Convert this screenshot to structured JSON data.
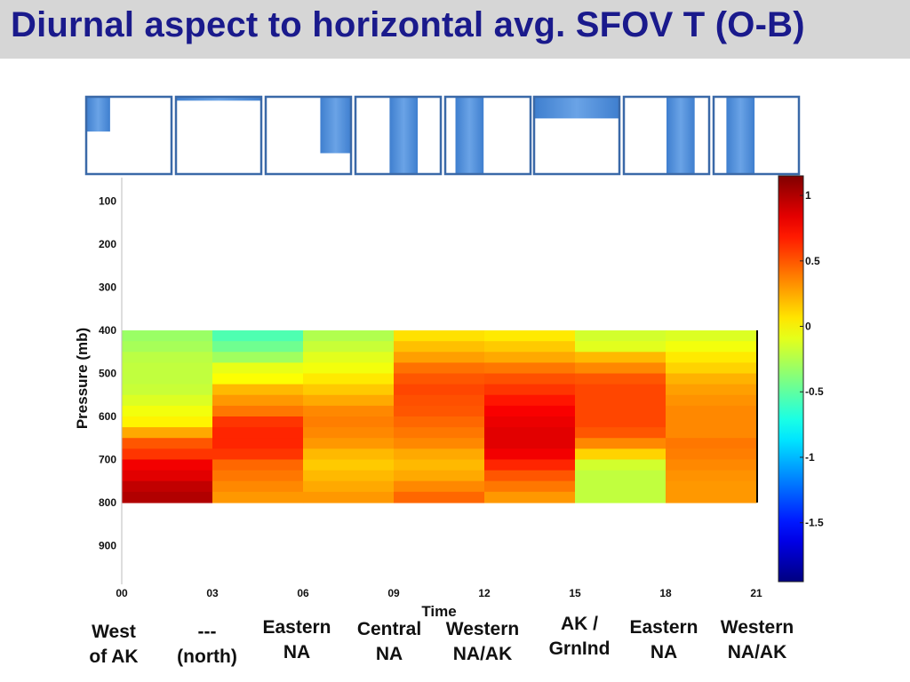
{
  "title": "Diurnal aspect to horizontal avg. SFOV T (O-B)",
  "region_labels": [
    "West\nof AK",
    "---\n(north)",
    "Eastern\nNA",
    "Central\nNA",
    "Western\nNA/AK",
    "AK /\nGrnInd",
    "Eastern\nNA",
    "Western\nNA/AK"
  ],
  "chart_data": {
    "type": "heatmap",
    "xlabel": "Time",
    "ylabel": "Pressure (mb)",
    "x_ticks": [
      "00",
      "03",
      "06",
      "09",
      "12",
      "15",
      "18",
      "21"
    ],
    "y_ticks": [
      100,
      200,
      300,
      400,
      500,
      600,
      700,
      800,
      900
    ],
    "xlim": [
      0,
      21
    ],
    "ylim": [
      45,
      990
    ],
    "y_inverted": true,
    "colorbar": {
      "min": -1.95,
      "max": 1.15,
      "ticks": [
        "1",
        "0.5",
        "0",
        "-0.5",
        "-1",
        "-1.5"
      ],
      "tick_values": [
        1,
        0.5,
        0,
        -0.5,
        -1,
        -1.5
      ],
      "colormap": "jet"
    },
    "cell_x_edges": [
      0,
      3,
      6,
      9,
      12,
      15,
      18,
      21
    ],
    "cell_p_edges": [
      400,
      425,
      450,
      475,
      500,
      525,
      550,
      575,
      600,
      625,
      650,
      675,
      700,
      725,
      750,
      775,
      800
    ],
    "columns": [
      {
        "time": "00-03",
        "values": [
          -0.32,
          -0.28,
          -0.22,
          -0.2,
          -0.2,
          -0.18,
          -0.12,
          -0.05,
          0.02,
          0.25,
          0.5,
          0.6,
          0.8,
          0.85,
          0.95,
          1.0
        ]
      },
      {
        "time": "03-06",
        "values": [
          -0.55,
          -0.45,
          -0.3,
          -0.08,
          -0.02,
          0.2,
          0.3,
          0.4,
          0.6,
          0.65,
          0.65,
          0.6,
          0.45,
          0.4,
          0.35,
          0.3
        ]
      },
      {
        "time": "06-09",
        "values": [
          -0.25,
          -0.18,
          -0.1,
          -0.05,
          0.05,
          0.15,
          0.25,
          0.35,
          0.38,
          0.35,
          0.3,
          0.2,
          0.15,
          0.2,
          0.25,
          0.3
        ]
      },
      {
        "time": "09-12",
        "values": [
          0.08,
          0.18,
          0.28,
          0.42,
          0.5,
          0.55,
          0.52,
          0.5,
          0.45,
          0.4,
          0.35,
          0.25,
          0.2,
          0.25,
          0.35,
          0.45
        ]
      },
      {
        "time": "12-15",
        "values": [
          0.05,
          0.15,
          0.25,
          0.4,
          0.52,
          0.6,
          0.7,
          0.78,
          0.82,
          0.85,
          0.85,
          0.8,
          0.65,
          0.5,
          0.4,
          0.3
        ]
      },
      {
        "time": "15-18",
        "values": [
          -0.15,
          -0.1,
          0.2,
          0.35,
          0.5,
          0.55,
          0.55,
          0.55,
          0.55,
          0.5,
          0.35,
          0.12,
          -0.15,
          -0.2,
          -0.2,
          -0.2
        ]
      },
      {
        "time": "18-21",
        "values": [
          -0.12,
          -0.05,
          0.05,
          0.12,
          0.22,
          0.28,
          0.32,
          0.35,
          0.35,
          0.35,
          0.4,
          0.38,
          0.35,
          0.32,
          0.3,
          0.3
        ]
      }
    ],
    "diurnal_icons": [
      {
        "lat_fraction_top": 0.0,
        "lat_fraction_bottom": 0.45,
        "lon_fraction_left": 0.0,
        "lon_fraction_right": 0.28
      },
      {
        "lat_fraction_top": 0.0,
        "lat_fraction_bottom": 0.05,
        "lon_fraction_left": 0.0,
        "lon_fraction_right": 1.0
      },
      {
        "lat_fraction_top": 0.0,
        "lat_fraction_bottom": 0.73,
        "lon_fraction_left": 0.64,
        "lon_fraction_right": 1.0
      },
      {
        "lat_fraction_top": 0.0,
        "lat_fraction_bottom": 1.0,
        "lon_fraction_left": 0.4,
        "lon_fraction_right": 0.73
      },
      {
        "lat_fraction_top": 0.0,
        "lat_fraction_bottom": 1.0,
        "lon_fraction_left": 0.12,
        "lon_fraction_right": 0.45
      },
      {
        "lat_fraction_top": 0.0,
        "lat_fraction_bottom": 0.28,
        "lon_fraction_left": 0.0,
        "lon_fraction_right": 1.0
      },
      {
        "lat_fraction_top": 0.0,
        "lat_fraction_bottom": 1.0,
        "lon_fraction_left": 0.5,
        "lon_fraction_right": 0.83
      },
      {
        "lat_fraction_top": 0.0,
        "lat_fraction_bottom": 1.0,
        "lon_fraction_left": 0.15,
        "lon_fraction_right": 0.48
      }
    ]
  }
}
